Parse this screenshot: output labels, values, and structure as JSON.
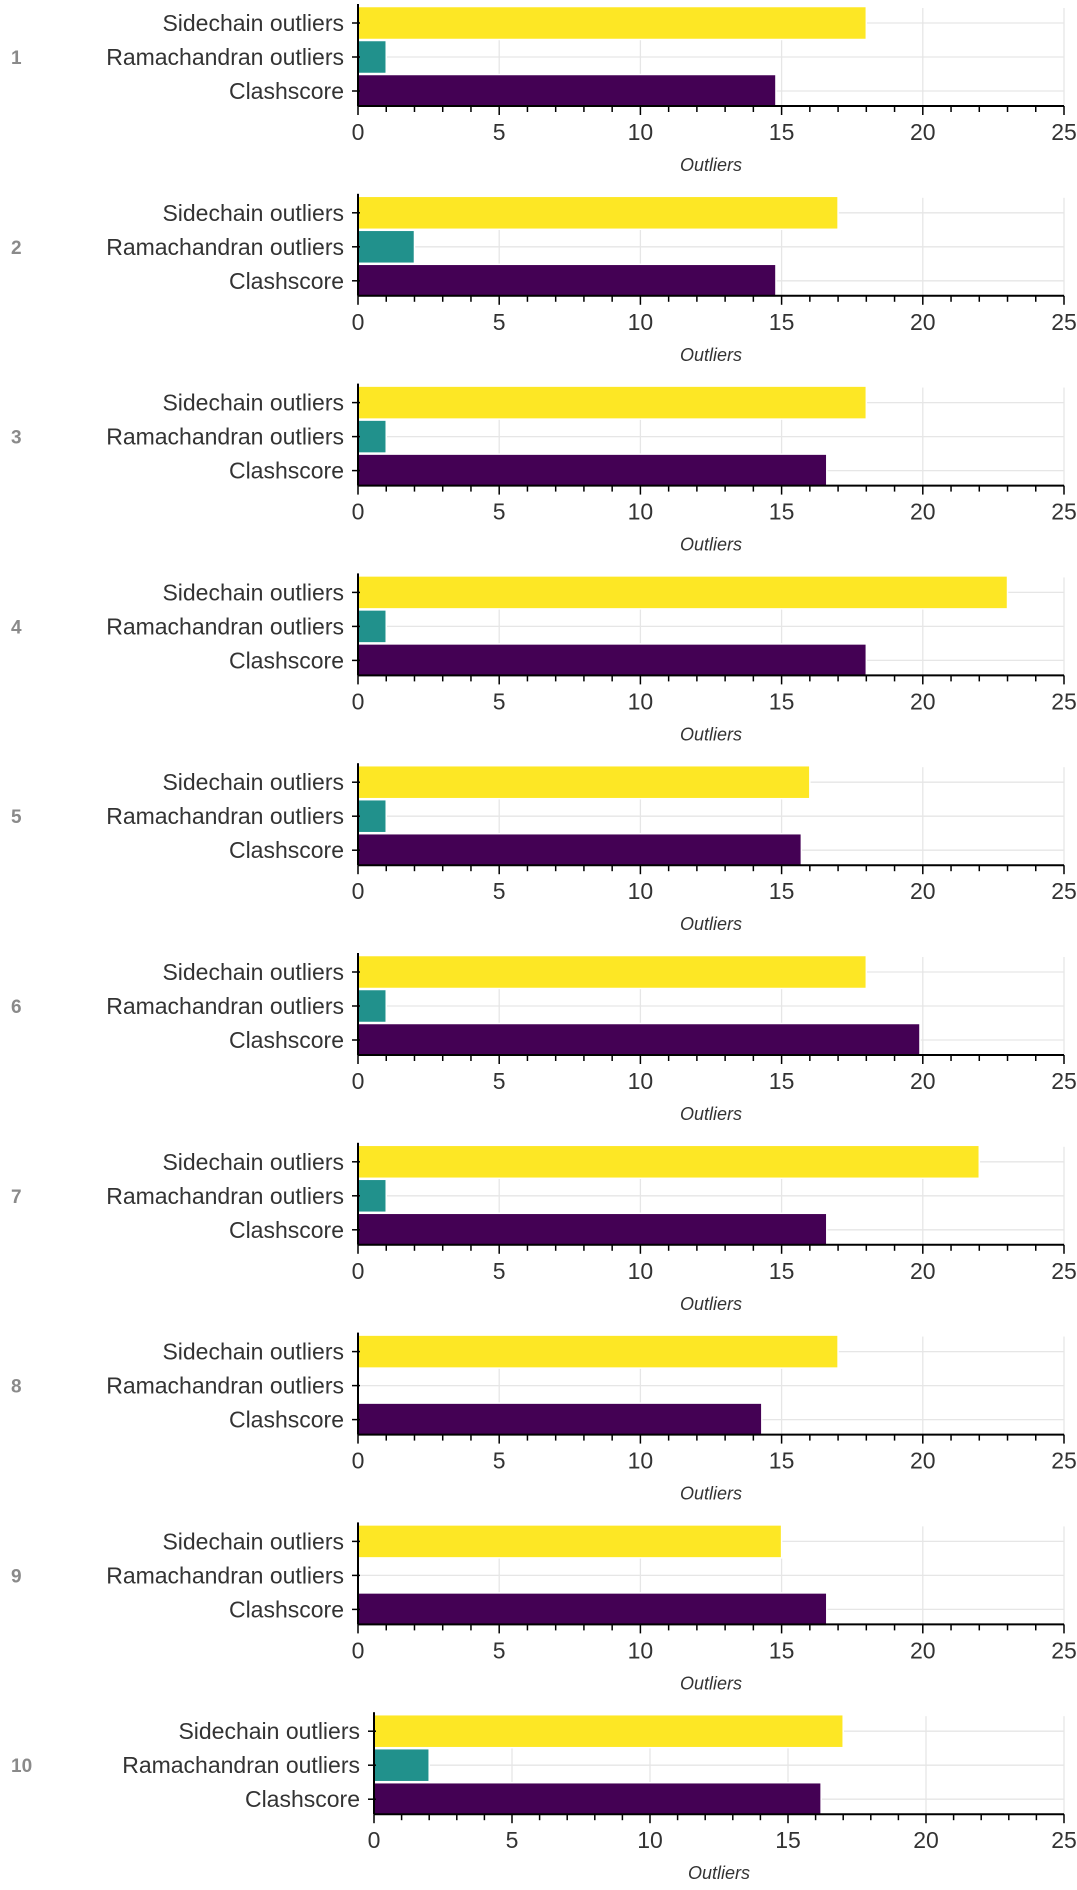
{
  "chart_data": {
    "type": "bar",
    "orientation": "horizontal",
    "categories": [
      "Sidechain outliers",
      "Ramachandran outliers",
      "Clashscore"
    ],
    "colors": {
      "Sidechain outliers": "#fde725",
      "Ramachandran outliers": "#21918c",
      "Clashscore": "#440154"
    },
    "xlabel": "Outliers",
    "xlim": [
      0,
      25
    ],
    "xticks": [
      0,
      5,
      10,
      15,
      20,
      25
    ],
    "grid": true,
    "panels": [
      {
        "label": "1",
        "values": [
          18,
          1,
          14.8
        ]
      },
      {
        "label": "2",
        "values": [
          17,
          2,
          14.8
        ]
      },
      {
        "label": "3",
        "values": [
          18,
          1,
          16.6
        ]
      },
      {
        "label": "4",
        "values": [
          23,
          1,
          18
        ]
      },
      {
        "label": "5",
        "values": [
          16,
          1,
          15.7
        ]
      },
      {
        "label": "6",
        "values": [
          18,
          1,
          19.9
        ]
      },
      {
        "label": "7",
        "values": [
          22,
          1,
          16.6
        ]
      },
      {
        "label": "8",
        "values": [
          17,
          0,
          14.3
        ]
      },
      {
        "label": "9",
        "values": [
          15,
          0,
          16.6
        ]
      },
      {
        "label": "10",
        "values": [
          17,
          2,
          16.2
        ]
      }
    ]
  }
}
